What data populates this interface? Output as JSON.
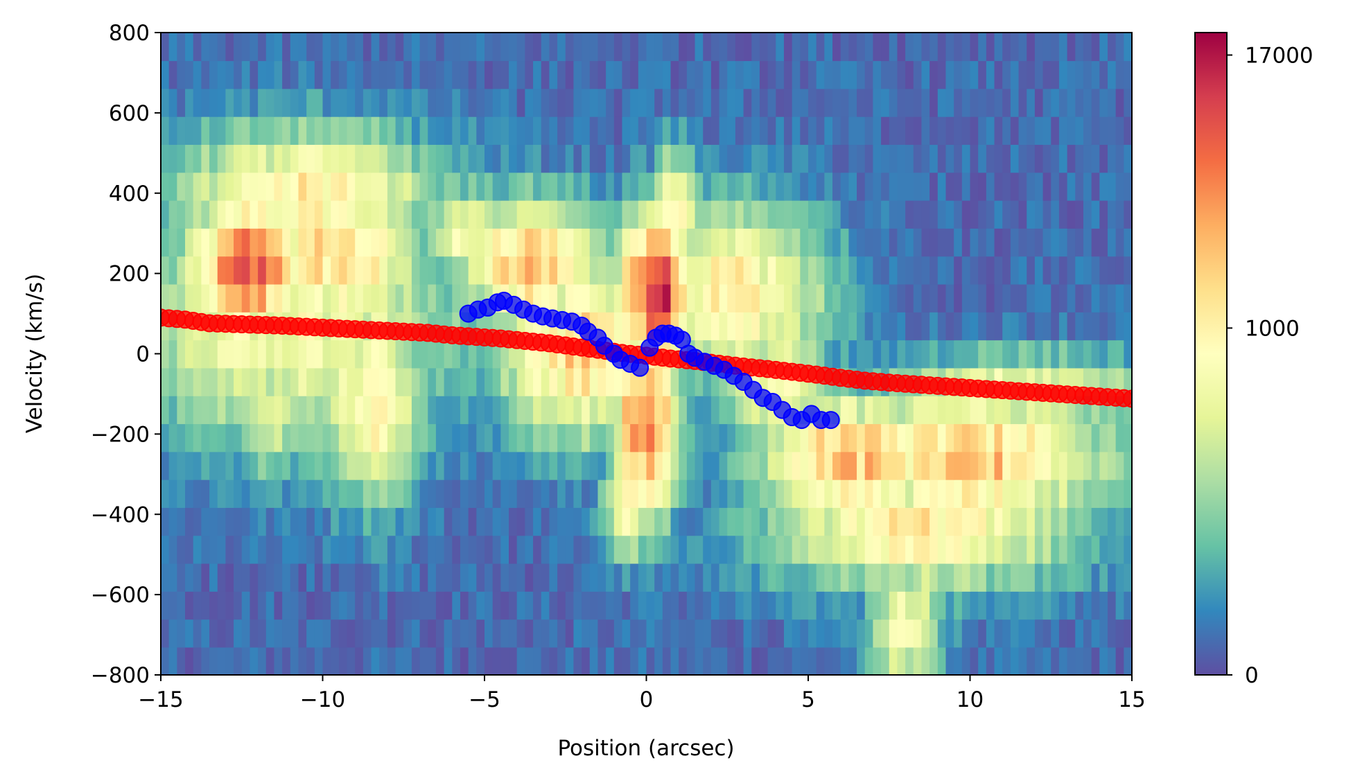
{
  "chart_data": {
    "type": "heatmap",
    "xlabel": "Position (arcsec)",
    "ylabel": "Velocity (km/s)",
    "xlim": [
      -15,
      15
    ],
    "ylim": [
      -800,
      800
    ],
    "x_ticks": [
      -15,
      -10,
      -5,
      0,
      5,
      10,
      15
    ],
    "y_ticks": [
      -800,
      -600,
      -400,
      -200,
      0,
      200,
      400,
      600,
      800
    ],
    "x_tick_labels": [
      "−15",
      "−10",
      "−5",
      "0",
      "5",
      "10",
      "15"
    ],
    "y_tick_labels": [
      "−800",
      "−600",
      "−400",
      "−200",
      "0",
      "200",
      "400",
      "600",
      "800"
    ],
    "grid": false,
    "colormap": "Spectral_r",
    "colorbar": {
      "ticks": [
        0,
        1000,
        17000
      ],
      "tick_labels": [
        "0",
        "1000",
        "17000"
      ],
      "colors": [
        "#5e4fa2",
        "#3288bd",
        "#66c2a5",
        "#abdda4",
        "#e6f598",
        "#ffffbf",
        "#fee08b",
        "#fdae61",
        "#f46d43",
        "#d53e4f",
        "#9e0142"
      ]
    },
    "heatmap_components": [
      {
        "center": [
          -12.2,
          220
        ],
        "width": [
          1.4,
          120
        ],
        "peak": 0.8
      },
      {
        "center": [
          -9.5,
          250
        ],
        "width": [
          1.8,
          140
        ],
        "peak": 0.58
      },
      {
        "center": [
          -10.5,
          400
        ],
        "width": [
          3.0,
          120
        ],
        "peak": 0.5
      },
      {
        "center": [
          -11.0,
          60
        ],
        "width": [
          4.0,
          200
        ],
        "peak": 0.42
      },
      {
        "center": [
          -8.5,
          -120
        ],
        "width": [
          1.2,
          180
        ],
        "peak": 0.48
      },
      {
        "center": [
          -11.5,
          -120
        ],
        "width": [
          1.0,
          140
        ],
        "peak": 0.36
      },
      {
        "center": [
          -3.5,
          220
        ],
        "width": [
          1.6,
          120
        ],
        "peak": 0.62
      },
      {
        "center": [
          -2.0,
          10
        ],
        "width": [
          1.8,
          160
        ],
        "peak": 0.6
      },
      {
        "center": [
          0.3,
          150
        ],
        "width": [
          0.8,
          150
        ],
        "peak": 0.98
      },
      {
        "center": [
          0.0,
          -180
        ],
        "width": [
          0.7,
          170
        ],
        "peak": 0.82
      },
      {
        "center": [
          0.9,
          350
        ],
        "width": [
          0.5,
          110
        ],
        "peak": 0.55
      },
      {
        "center": [
          -0.5,
          -380
        ],
        "width": [
          0.6,
          90
        ],
        "peak": 0.5
      },
      {
        "center": [
          2.8,
          150
        ],
        "width": [
          2.0,
          160
        ],
        "peak": 0.52
      },
      {
        "center": [
          6.5,
          -260
        ],
        "width": [
          2.2,
          110
        ],
        "peak": 0.65
      },
      {
        "center": [
          10.0,
          -260
        ],
        "width": [
          3.0,
          120
        ],
        "peak": 0.62
      },
      {
        "center": [
          8.5,
          -430
        ],
        "width": [
          3.5,
          110
        ],
        "peak": 0.52
      },
      {
        "center": [
          8.0,
          -680
        ],
        "width": [
          0.8,
          110
        ],
        "peak": 0.44
      },
      {
        "center": [
          11.5,
          -90
        ],
        "width": [
          3.0,
          70
        ],
        "peak": 0.4
      },
      {
        "center": [
          -5.5,
          300
        ],
        "width": [
          1.2,
          90
        ],
        "peak": 0.4
      },
      {
        "center": [
          4.0,
          -80
        ],
        "width": [
          1.2,
          130
        ],
        "peak": 0.45
      }
    ],
    "series": [
      {
        "marker_color": "#ff0000",
        "x": [
          -15.0,
          -14.25,
          -13.5,
          -12.75,
          -12.0,
          -11.25,
          -10.5,
          -9.75,
          -9.0,
          -8.25,
          -7.5,
          -6.75,
          -6.0,
          -5.25,
          -4.5,
          -3.75,
          -3.0,
          -2.25,
          -1.5,
          -0.75,
          0.0,
          0.75,
          1.5,
          2.25,
          3.0,
          3.75,
          4.5,
          5.25,
          6.0,
          6.75,
          7.5,
          8.25,
          9.0,
          9.75,
          10.5,
          11.25,
          12.0,
          12.75,
          13.5,
          14.25,
          15.0
        ],
        "y": [
          90,
          85,
          76,
          74,
          72,
          70,
          67,
          64,
          61,
          58,
          55,
          52,
          46,
          42,
          38,
          32,
          26,
          18,
          10,
          2,
          -5,
          -12,
          -18,
          -25,
          -32,
          -38,
          -45,
          -52,
          -60,
          -67,
          -72,
          -76,
          -80,
          -84,
          -88,
          -92,
          -96,
          -100,
          -104,
          -108,
          -112
        ]
      },
      {
        "marker_color": "#0000ff",
        "x": [
          -5.5,
          -5.2,
          -4.9,
          -4.6,
          -4.4,
          -4.1,
          -3.8,
          -3.5,
          -3.2,
          -2.9,
          -2.6,
          -2.3,
          -2.0,
          -1.8,
          -1.5,
          -1.3,
          -1.0,
          -0.8,
          -0.5,
          -0.2,
          0.1,
          0.3,
          0.5,
          0.7,
          0.9,
          1.1,
          1.3,
          1.5,
          1.8,
          2.1,
          2.4,
          2.7,
          3.0,
          3.3,
          3.6,
          3.9,
          4.2,
          4.5,
          4.8,
          5.1,
          5.4,
          5.7
        ],
        "y": [
          100,
          110,
          115,
          128,
          132,
          122,
          110,
          100,
          93,
          88,
          84,
          80,
          70,
          55,
          40,
          20,
          0,
          -15,
          -25,
          -35,
          15,
          40,
          50,
          50,
          45,
          35,
          0,
          -10,
          -20,
          -30,
          -40,
          -55,
          -70,
          -90,
          -110,
          -120,
          -140,
          -158,
          -165,
          -150,
          -165,
          -165
        ]
      }
    ]
  }
}
